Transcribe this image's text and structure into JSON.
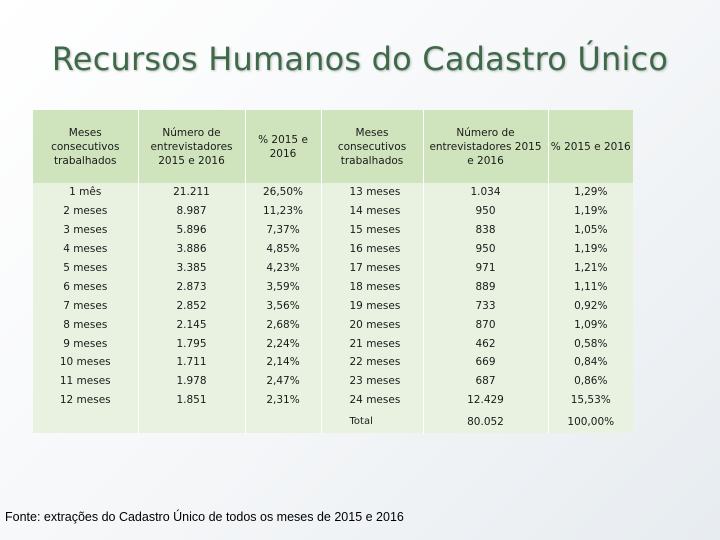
{
  "title": "Recursos Humanos do Cadastro Único",
  "table": {
    "headers": [
      "Meses consecutivos trabalhados",
      "Número de entrevistadores 2015 e 2016",
      "% 2015 e 2016",
      "Meses consecutivos trabalhados",
      "Número de entrevistadores 2015 e 2016",
      "% 2015 e 2016"
    ],
    "rows": [
      [
        "1 mês",
        "21.211",
        "26,50%",
        "13 meses",
        "1.034",
        "1,29%"
      ],
      [
        "2 meses",
        "8.987",
        "11,23%",
        "14 meses",
        "950",
        "1,19%"
      ],
      [
        "3 meses",
        "5.896",
        "7,37%",
        "15 meses",
        "838",
        "1,05%"
      ],
      [
        "4 meses",
        "3.886",
        "4,85%",
        "16 meses",
        "950",
        "1,19%"
      ],
      [
        "5 meses",
        "3.385",
        "4,23%",
        "17 meses",
        "971",
        "1,21%"
      ],
      [
        "6 meses",
        "2.873",
        "3,59%",
        "18 meses",
        "889",
        "1,11%"
      ],
      [
        "7 meses",
        "2.852",
        "3,56%",
        "19 meses",
        "733",
        "0,92%"
      ],
      [
        "8 meses",
        "2.145",
        "2,68%",
        "20 meses",
        "870",
        "1,09%"
      ],
      [
        "9 meses",
        "1.795",
        "2,24%",
        "21 meses",
        "462",
        "0,58%"
      ],
      [
        "10 meses",
        "1.711",
        "2,14%",
        "22 meses",
        "669",
        "0,84%"
      ],
      [
        "11 meses",
        "1.978",
        "2,47%",
        "23 meses",
        "687",
        "0,86%"
      ],
      [
        "12 meses",
        "1.851",
        "2,31%",
        "24 meses",
        "12.429",
        "15,53%"
      ]
    ],
    "total": {
      "label": "Total",
      "count": "80.052",
      "percent": "100,00%"
    }
  },
  "footer": "Fonte: extrações do Cadastro Único de todos os meses de 2015 e  2016"
}
